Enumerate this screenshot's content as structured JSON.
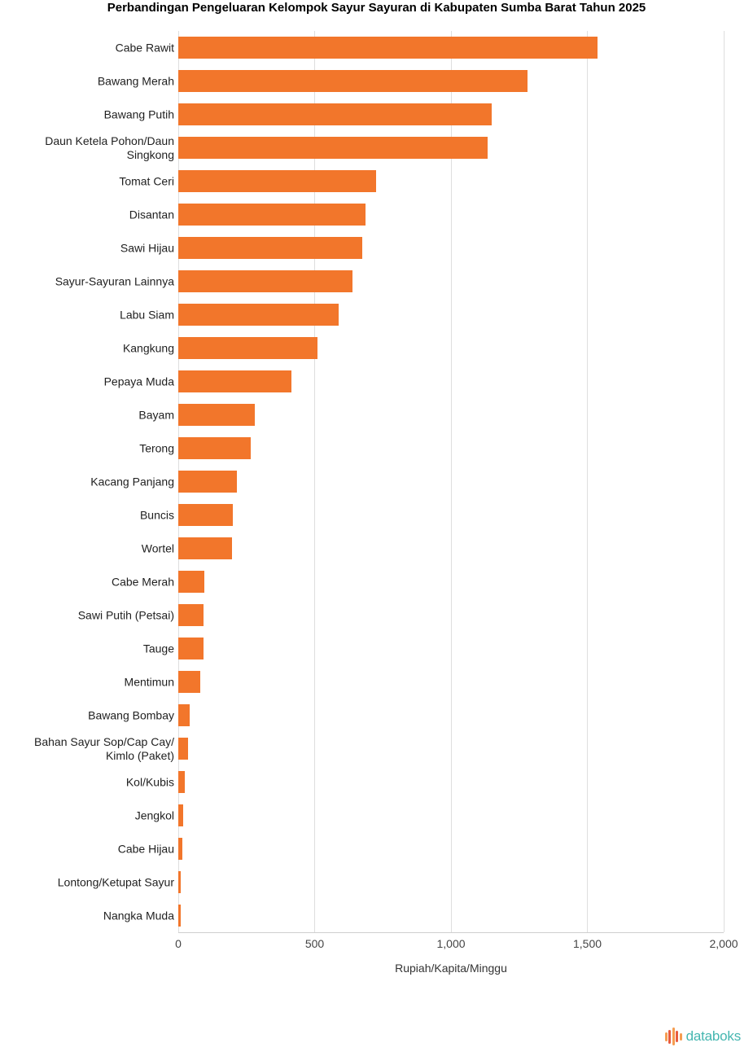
{
  "chart_data": {
    "type": "bar",
    "orientation": "horizontal",
    "title": "Perbandingan Pengeluaran Kelompok Sayur Sayuran di Kabupaten Sumba Barat Tahun 2025",
    "xlabel": "Rupiah/Kapita/Minggu",
    "ylabel": "",
    "xlim": [
      0,
      2000
    ],
    "x_ticks": [
      "0",
      "500",
      "1,000",
      "1,500",
      "2,000"
    ],
    "x_tick_values": [
      0,
      500,
      1000,
      1500,
      2000
    ],
    "grid": true,
    "legend": false,
    "bar_color": "#F2762B",
    "gridline_color": "#DEDEDE",
    "axis_line_color": "#CFCFCF",
    "categories": [
      "Cabe Rawit",
      "Bawang Merah",
      "Bawang Putih",
      "Daun Ketela Pohon/Daun\nSingkong",
      "Tomat Ceri",
      "Disantan",
      "Sawi Hijau",
      "Sayur-Sayuran Lainnya",
      "Labu Siam",
      "Kangkung",
      "Pepaya Muda",
      "Bayam",
      "Terong",
      "Kacang Panjang",
      "Buncis",
      "Wortel",
      "Cabe Merah",
      "Sawi Putih (Petsai)",
      "Tauge",
      "Mentimun",
      "Bawang Bombay",
      "Bahan Sayur Sop/Cap Cay/\nKimlo (Paket)",
      "Kol/Kubis",
      "Jengkol",
      "Cabe Hijau",
      "Lontong/Ketupat Sayur",
      "Nangka Muda"
    ],
    "values": [
      1538,
      1281,
      1150,
      1135,
      724,
      686,
      675,
      638,
      587,
      511,
      414,
      282,
      265,
      216,
      201,
      198,
      96,
      94,
      92,
      80,
      42,
      35,
      25,
      17,
      14,
      10,
      8
    ]
  },
  "footer": {
    "brand": "databoks",
    "brand_color": "#45B6B0",
    "icon_colors": [
      "#F59D51",
      "#E85C3F",
      "#F59D51",
      "#E85C3F",
      "#F59D51"
    ]
  }
}
